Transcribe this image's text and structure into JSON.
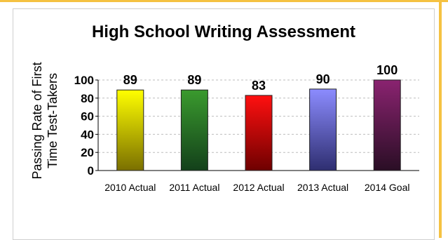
{
  "chart_data": {
    "type": "bar",
    "title": "High School Writing Assessment",
    "ylabel": "Passing Rate of First Time Test-Takers",
    "xlabel": "",
    "categories": [
      "2010 Actual",
      "2011 Actual",
      "2012 Actual",
      "2013 Actual",
      "2014 Goal"
    ],
    "values": [
      89,
      89,
      83,
      90,
      100
    ],
    "data_labels": [
      "89",
      "89",
      "83",
      "90",
      "100"
    ],
    "ylim": [
      0,
      100
    ],
    "yticks": [
      0,
      20,
      40,
      60,
      80,
      100
    ],
    "ytick_labels": [
      "0",
      "20",
      "40",
      "60",
      "80",
      "100"
    ],
    "grid": true,
    "legend": "none",
    "colors": [
      {
        "top": "#ffff00",
        "bottom": "#7a6f00"
      },
      {
        "top": "#3a9a2e",
        "bottom": "#13401a"
      },
      {
        "top": "#ff1010",
        "bottom": "#6e0000"
      },
      {
        "top": "#8c8cff",
        "bottom": "#2e2e70"
      },
      {
        "top": "#8a2370",
        "bottom": "#2a0e25"
      }
    ]
  }
}
